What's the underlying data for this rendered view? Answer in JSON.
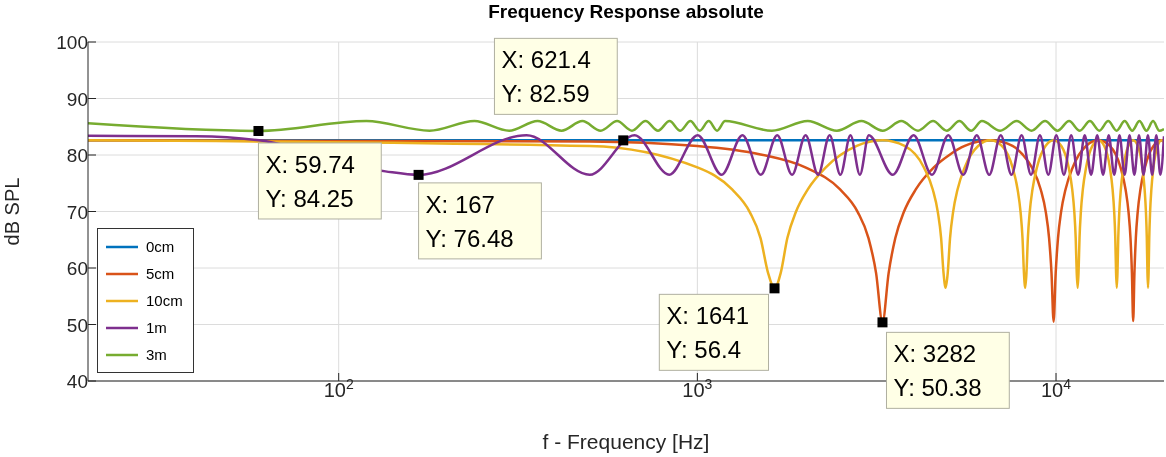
{
  "chart_data": {
    "type": "line",
    "title": "Frequency Response absolute",
    "xlabel": "f - Frequency [Hz]",
    "ylabel": "dB SPL",
    "log": "x",
    "grid": true,
    "legend": "bottom left",
    "marker": "none",
    "line_style": "solid",
    "xlim": [
      20,
      20000
    ],
    "xticks": [
      {
        "value": 100,
        "label": "10$^{2}$"
      },
      {
        "value": 1000,
        "label": "10$^{3}$"
      },
      {
        "value": 10000,
        "label": "10$^{4}$"
      }
    ],
    "ylim": [
      40,
      100
    ],
    "yticks": [
      40,
      50,
      60,
      70,
      80,
      90,
      100
    ],
    "series": [
      {
        "name": "0cm",
        "color": "#0072bd",
        "x": [
          20,
          20000
        ],
        "values": [
          82.6,
          82.6
        ]
      },
      {
        "name": "5cm",
        "color": "#d95319",
        "x": [
          20,
          500,
          1000,
          1500,
          2000,
          2500,
          2800,
          3000,
          3150,
          3282,
          3414,
          3564,
          3764,
          4064,
          4564,
          5064,
          5564,
          6564,
          7564,
          8064,
          8564,
          9064,
          9364,
          9564,
          9714,
          9846,
          9978,
          10128,
          10328,
          10628,
          11128,
          12128,
          13128,
          14128,
          15128,
          15628,
          15928,
          16128,
          16278,
          16410,
          16542,
          16692,
          16892,
          17192,
          17692,
          18692,
          19692,
          20000
        ],
        "values": [
          82.6,
          82.4,
          81.6,
          80.1,
          77.8,
          73.9,
          69.9,
          65.3,
          59.1,
          50.38,
          59.1,
          65.3,
          69.9,
          73.9,
          77.8,
          80.1,
          81.6,
          82.6,
          81.6,
          80.1,
          77.8,
          73.9,
          69.9,
          65.3,
          59.1,
          50.5,
          59.1,
          65.3,
          69.9,
          73.9,
          77.8,
          81.6,
          82.6,
          81.6,
          77.8,
          73.9,
          69.9,
          65.3,
          59.1,
          50.6,
          59.1,
          65.3,
          69.9,
          73.9,
          77.8,
          81.6,
          82.6,
          82.5
        ]
      },
      {
        "name": "10cm",
        "color": "#edb120",
        "x": [
          20,
          500,
          1000,
          1250,
          1400,
          1500,
          1575,
          1641,
          1707,
          1782,
          1882,
          2032,
          2282,
          2782,
          3282,
          3782,
          4282,
          4532,
          4682,
          4782,
          4857,
          4923,
          4989,
          5064,
          5164,
          5314,
          5564,
          6064,
          6564,
          7064,
          7564,
          7814,
          7964,
          8064,
          8139,
          8205,
          8271,
          8346,
          8446,
          8596,
          8846,
          9346,
          9846,
          10346,
          10846,
          11096,
          11246,
          11346,
          11421,
          11487,
          11553,
          11628,
          11728,
          11878,
          12128,
          12628,
          13128,
          13628,
          14128,
          14378,
          14528,
          14628,
          14703,
          14769,
          14835,
          14910,
          15010,
          15160,
          15410,
          15910,
          16410,
          16910,
          17410,
          17660,
          17810,
          17910,
          17985,
          18051,
          18117,
          18192,
          18292,
          18442,
          18692,
          19192,
          19692,
          20000
        ],
        "values": [
          82.6,
          81.6,
          77.8,
          73.9,
          69.9,
          65.3,
          59.1,
          56.4,
          59.1,
          65.3,
          69.9,
          73.9,
          77.8,
          81.6,
          82.6,
          81.6,
          77.8,
          73.9,
          69.9,
          65.3,
          59.1,
          56.5,
          59.1,
          65.3,
          69.9,
          73.9,
          77.8,
          81.6,
          82.6,
          81.6,
          77.8,
          73.9,
          69.9,
          65.3,
          59.1,
          56.5,
          59.1,
          65.3,
          69.9,
          73.9,
          77.8,
          81.6,
          82.6,
          81.6,
          77.8,
          73.9,
          69.9,
          65.3,
          59.1,
          56.5,
          59.1,
          65.3,
          69.9,
          73.9,
          77.8,
          81.6,
          82.6,
          81.6,
          77.8,
          73.9,
          69.9,
          65.3,
          59.1,
          56.5,
          59.1,
          65.3,
          69.9,
          73.9,
          77.8,
          81.6,
          82.6,
          81.6,
          77.8,
          73.9,
          69.9,
          65.3,
          59.1,
          56.5,
          59.1,
          65.3,
          69.9,
          73.9,
          77.8,
          81.6,
          82.6,
          82.2
        ]
      },
      {
        "name": "1m",
        "color": "#7e2f8e",
        "x": [
          20,
          40,
          60,
          135,
          167,
          334,
          501,
          668,
          835,
          1002,
          1169,
          1336,
          1503,
          1670,
          1837,
          2004,
          2171,
          2338,
          2505,
          2672,
          2839,
          3006,
          3507,
          4008,
          4509,
          5010,
          5511,
          6012,
          6513,
          7014,
          7515,
          8016,
          8517,
          9018,
          9519,
          10020,
          10521,
          11022,
          11523,
          12024,
          12525,
          13026,
          13527,
          14028,
          14529,
          15030,
          15531,
          16032,
          16533,
          17034,
          17535,
          18036,
          18537,
          19038,
          19539,
          20000
        ],
        "values": [
          83.4,
          83.3,
          82.6,
          77.1,
          76.48,
          83.5,
          76.5,
          83.5,
          76.5,
          83.5,
          76.5,
          83.5,
          76.5,
          83.5,
          76.5,
          83.5,
          76.5,
          83.5,
          76.5,
          83.5,
          76.5,
          83.5,
          76.5,
          83.5,
          76.5,
          83.5,
          76.5,
          83.5,
          76.5,
          83.5,
          76.5,
          83.5,
          76.5,
          83.5,
          76.5,
          83.5,
          76.5,
          83.5,
          76.5,
          83.5,
          76.5,
          83.5,
          76.5,
          83.5,
          76.5,
          83.5,
          76.5,
          83.5,
          76.5,
          83.5,
          76.5,
          83.5,
          76.5,
          83.5,
          76.5,
          83.3
        ]
      },
      {
        "name": "3m",
        "color": "#77ac30",
        "x": [
          20,
          59.74,
          119.5,
          179.2,
          239,
          298.7,
          358.5,
          418.2,
          478,
          537.7,
          597.5,
          657.2,
          717,
          776.7,
          836.5,
          896.2,
          956,
          1015.7,
          1075.5,
          1135.2,
          1195,
          1613.3,
          2031.5,
          2449.8,
          2868,
          3286.3,
          3704.5,
          4122.8,
          4541,
          4959.3,
          5377.5,
          5795.8,
          6214,
          6990.8,
          7767.5,
          8544.3,
          9321,
          10097.8,
          10874.5,
          11651.3,
          12428,
          13204.8,
          13981.5,
          14758.3,
          15535,
          16311.8,
          17088.5,
          17865.3,
          18642,
          19418.8,
          20000
        ],
        "values": [
          85.6,
          84.25,
          86,
          84.3,
          86,
          84.3,
          86,
          84.3,
          86,
          84.3,
          86,
          84.3,
          86,
          84.3,
          86,
          84.3,
          86,
          84.3,
          86,
          84.3,
          86,
          84.3,
          86,
          84.3,
          86,
          84.3,
          86,
          84.3,
          86,
          84.3,
          86,
          84.3,
          86,
          84.3,
          86,
          84.3,
          86,
          84.3,
          86,
          84.3,
          86,
          84.3,
          86,
          84.3,
          86,
          84.3,
          86,
          84.3,
          86,
          84.3,
          84.6
        ]
      }
    ],
    "annotations": [
      {
        "text": "X: 59.74\nY: 84.25",
        "x": 59.74,
        "y": 84.25
      },
      {
        "text": "X: 167\nY: 76.48",
        "x": 167,
        "y": 76.48
      },
      {
        "text": "X: 621.4\nY: 82.59",
        "x": 621.4,
        "y": 82.59
      },
      {
        "text": "X: 1641\nY: 56.4",
        "x": 1641,
        "y": 56.4
      },
      {
        "text": "X: 3282\nY: 50.38",
        "x": 3282,
        "y": 50.38
      }
    ]
  }
}
